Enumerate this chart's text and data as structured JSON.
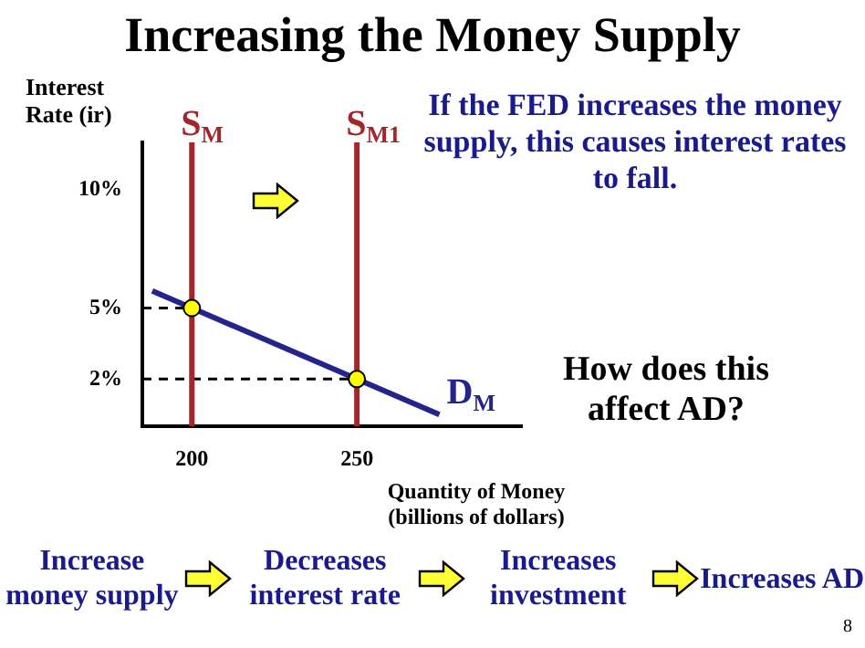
{
  "chart_data": {
    "type": "line",
    "title": "Increasing the Money Supply",
    "ylabel": "Interest Rate (ir)",
    "xlabel": "Quantity of Money (billions of dollars)",
    "xlim": [
      185,
      300
    ],
    "xticks": [
      200,
      250
    ],
    "ylim": [
      0,
      12
    ],
    "yticks": [
      {
        "value": 2,
        "label": "2%"
      },
      {
        "value": 5,
        "label": "5%"
      },
      {
        "value": 10,
        "label": "10%"
      }
    ],
    "grid": false,
    "legend": false,
    "series": [
      {
        "name": "D$_{M}$",
        "color": "#24248c",
        "x": [
          188,
          275
        ],
        "values": [
          5.72,
          0.5
        ]
      },
      {
        "name": "S$_{M}$",
        "color": "#a3262a",
        "x": [
          200,
          200
        ],
        "values": [
          0,
          12
        ]
      },
      {
        "name": "S$_{M1}$",
        "color": "#a3262a",
        "x": [
          250,
          250
        ],
        "values": [
          0,
          12
        ]
      },
      {
        "color": "#000000",
        "line_style": "dashed",
        "x": [
          185,
          200
        ],
        "values": [
          5,
          5
        ]
      },
      {
        "color": "#000000",
        "line_style": "dashed",
        "x": [
          185,
          250
        ],
        "values": [
          2,
          2
        ]
      },
      {
        "type": "scatter",
        "color": "#ffff00",
        "marker": "circle",
        "x": [
          200,
          250
        ],
        "values": [
          5,
          2
        ]
      }
    ],
    "annotations": [
      "If the FED increases the money supply, this causes interest rates to fall.",
      "How does this affect AD?",
      "Increase money supply",
      "Decreases interest rate",
      "Increases investment",
      "Increases AD",
      "8"
    ]
  }
}
